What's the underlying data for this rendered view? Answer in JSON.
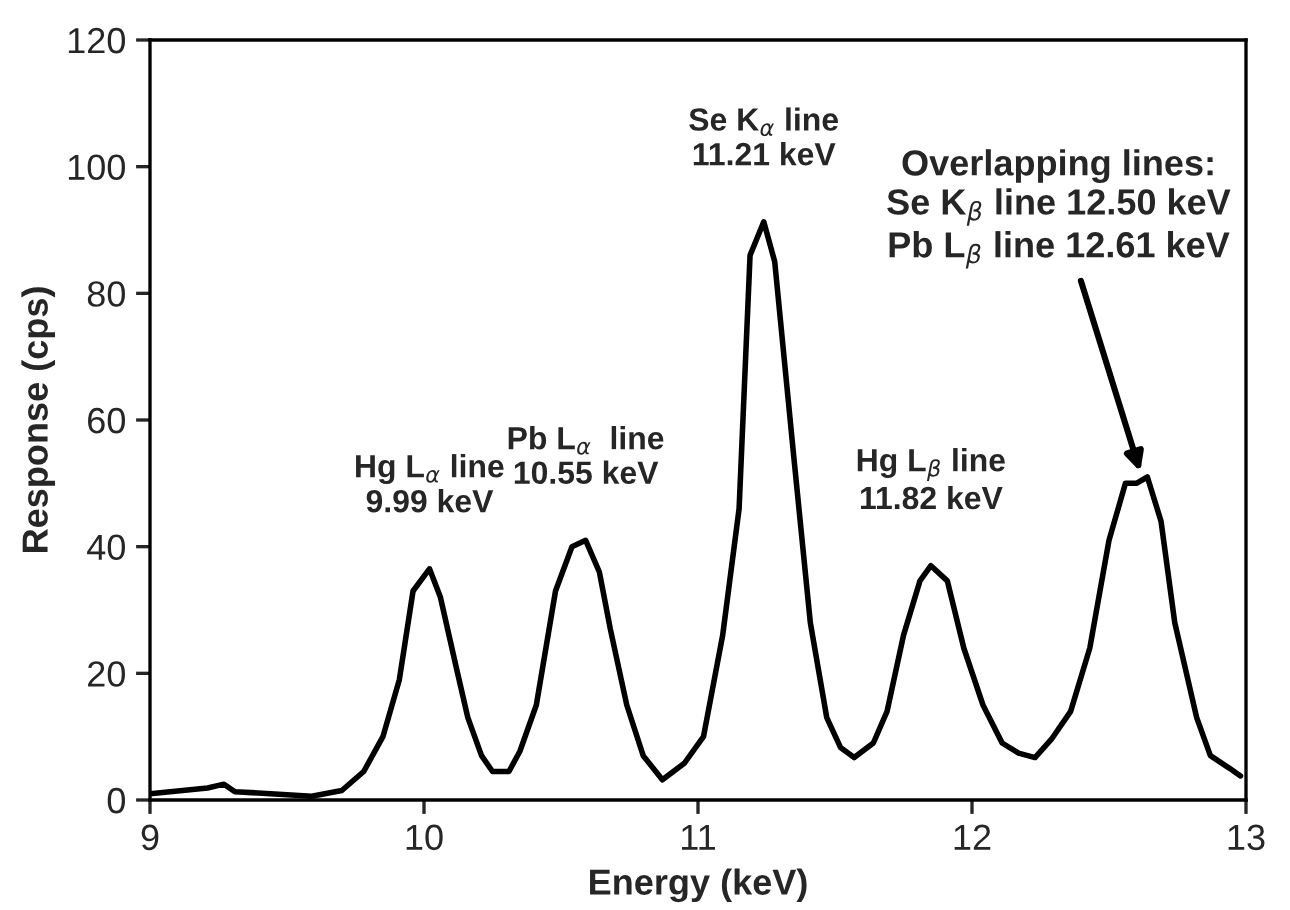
{
  "chart_data": {
    "type": "line",
    "xlabel": "Energy (keV)",
    "ylabel": "Response (cps)",
    "xlim": [
      9,
      13
    ],
    "xticks": [
      9,
      10,
      11,
      12,
      13
    ],
    "ylim": [
      0,
      120
    ],
    "yticks": [
      0,
      20,
      40,
      60,
      80,
      100,
      120
    ],
    "grid": false,
    "legend": false,
    "marker": "none",
    "line_style": "solid",
    "series": [
      {
        "color": "#000000",
        "x": [
          9.0,
          9.21,
          9.27,
          9.31,
          9.44,
          9.59,
          9.7,
          9.78,
          9.85,
          9.91,
          9.96,
          10.02,
          10.06,
          10.12,
          10.16,
          10.21,
          10.25,
          10.31,
          10.35,
          10.41,
          10.48,
          10.54,
          10.59,
          10.64,
          10.68,
          10.74,
          10.8,
          10.87,
          10.95,
          11.02,
          11.09,
          11.15,
          11.19,
          11.24,
          11.28,
          11.35,
          11.41,
          11.47,
          11.52,
          11.57,
          11.64,
          11.69,
          11.75,
          11.81,
          11.85,
          11.91,
          11.97,
          12.04,
          12.11,
          12.17,
          12.23,
          12.29,
          12.36,
          12.43,
          12.5,
          12.56,
          12.6,
          12.64,
          12.69,
          12.74,
          12.82,
          12.87,
          12.94,
          12.98
        ],
        "values": [
          1.0,
          1.9,
          2.5,
          1.3,
          1.0,
          0.6,
          1.5,
          4.5,
          10,
          19,
          33,
          36.5,
          32,
          20.5,
          13,
          7,
          4.5,
          4.5,
          7.7,
          15,
          33,
          40,
          41,
          36,
          27,
          15,
          7,
          3.2,
          5.8,
          10,
          26,
          46,
          86,
          91.3,
          85,
          54,
          28,
          13,
          8.3,
          6.7,
          9,
          14,
          26,
          34.6,
          37,
          34.6,
          24,
          15,
          9,
          7.4,
          6.7,
          9.6,
          14,
          24,
          41,
          50,
          50,
          51,
          44,
          28,
          13,
          7,
          5,
          3.8
        ]
      }
    ],
    "annotations": [
      {
        "text": "Hg L$_{α}$ line\n9.99 keV",
        "x": 10.02,
        "y": 36.5
      },
      {
        "text": "Pb L$_{α}$  line\n10.55 keV",
        "x": 10.59,
        "y": 41
      },
      {
        "text": "Se K$_{α}$ line\n11.21 keV",
        "x": 11.24,
        "y": 91.3
      },
      {
        "text": "Hg L$_{β}$ line\n11.82 keV",
        "x": 11.85,
        "y": 37
      },
      {
        "text": "Overlapping lines:\nSe K$_{β}$ line 12.50 keV\nPb L$_{β}$ line 12.61 keV",
        "x": 12.62,
        "y": 51
      }
    ]
  }
}
